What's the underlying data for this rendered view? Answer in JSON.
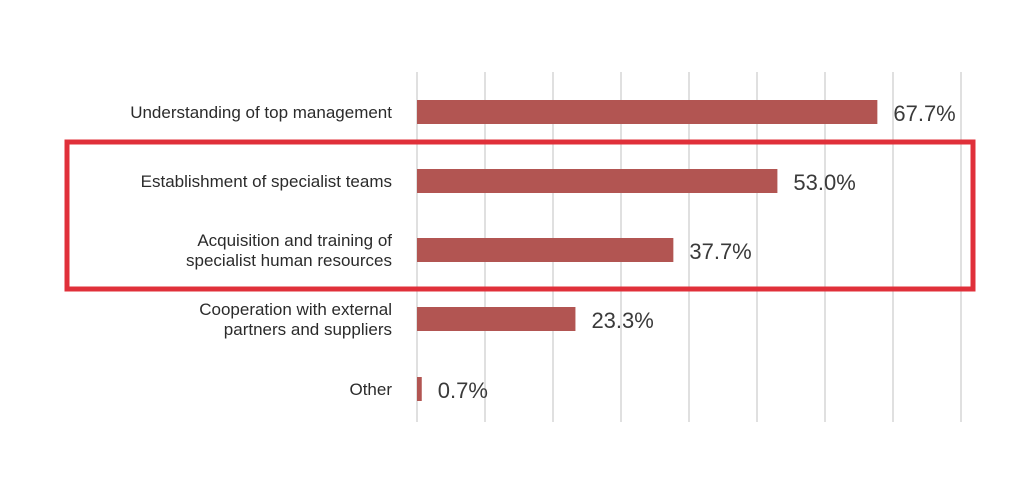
{
  "chart_data": {
    "type": "bar",
    "orientation": "horizontal",
    "categories": [
      [
        "Understanding of top management"
      ],
      [
        "Establishment of specialist teams"
      ],
      [
        "Acquisition and training of",
        "specialist human resources"
      ],
      [
        "Cooperation with external",
        "partners and suppliers"
      ],
      [
        "Other"
      ]
    ],
    "values": [
      67.7,
      53.0,
      37.7,
      23.3,
      0.7
    ],
    "value_labels": [
      "67.7%",
      "53.0%",
      "37.7%",
      "23.3%",
      "0.7%"
    ],
    "xlim": [
      0,
      80
    ],
    "grid": true,
    "highlight": {
      "categories": [
        1,
        2
      ],
      "color": "#e0303a"
    },
    "colors": {
      "bar": "#b25552",
      "grid": "#d6d6d6",
      "text": "#2b2b2b"
    }
  }
}
